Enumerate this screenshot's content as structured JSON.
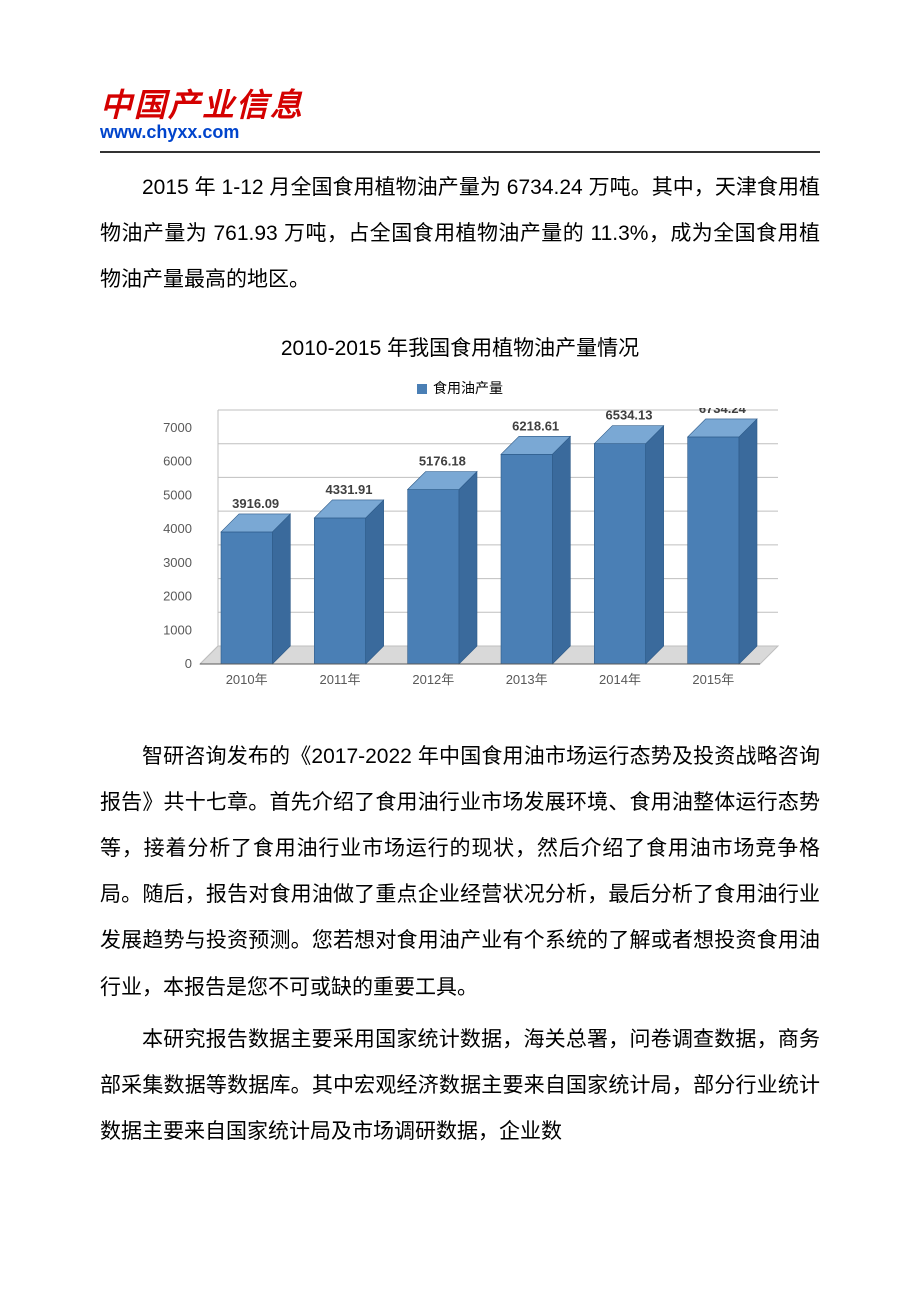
{
  "logo": {
    "text_cn": "中国产业信息",
    "url": "www.chyxx.com",
    "red": "#d40000",
    "blue": "#0044cc"
  },
  "intro": "2015 年 1-12 月全国食用植物油产量为 6734.24 万吨。其中，天津食用植物油产量为 761.93 万吨，占全国食用植物油产量的 11.3%，成为全国食用植物油产量最高的地区。",
  "chart": {
    "type": "bar",
    "title": "2010-2015 年我国食用植物油产量情况",
    "legend_label": "食用油产量",
    "legend_color": "#4a7fb5",
    "categories": [
      "2010年",
      "2011年",
      "2012年",
      "2013年",
      "2014年",
      "2015年"
    ],
    "values": [
      3916.09,
      4331.91,
      5176.18,
      6218.61,
      6534.13,
      6734.24
    ],
    "value_labels": [
      "3916.09",
      "4331.91",
      "5176.18",
      "6218.61",
      "6534.13",
      "6734.24"
    ],
    "ylim": [
      0,
      7000
    ],
    "ytick_step": 1000,
    "yticks": [
      "0",
      "1000",
      "2000",
      "3000",
      "4000",
      "5000",
      "6000",
      "7000"
    ],
    "bar_fill_top": "#7aa8d4",
    "bar_fill_front": "#4a7fb5",
    "bar_fill_side": "#3a6a9c",
    "grid_color": "#bfbfbf",
    "floor_color": "#d9d9d9",
    "axis_text_color": "#595959",
    "label_color": "#404040",
    "axis_fontsize": 13,
    "value_fontsize": 13,
    "background": "#ffffff"
  },
  "para2": "智研咨询发布的《2017-2022 年中国食用油市场运行态势及投资战略咨询报告》共十七章。首先介绍了食用油行业市场发展环境、食用油整体运行态势等，接着分析了食用油行业市场运行的现状，然后介绍了食用油市场竞争格局。随后，报告对食用油做了重点企业经营状况分析，最后分析了食用油行业发展趋势与投资预测。您若想对食用油产业有个系统的了解或者想投资食用油行业，本报告是您不可或缺的重要工具。",
  "para3": "本研究报告数据主要采用国家统计数据，海关总署，问卷调查数据，商务部采集数据等数据库。其中宏观经济数据主要来自国家统计局，部分行业统计数据主要来自国家统计局及市场调研数据，企业数"
}
